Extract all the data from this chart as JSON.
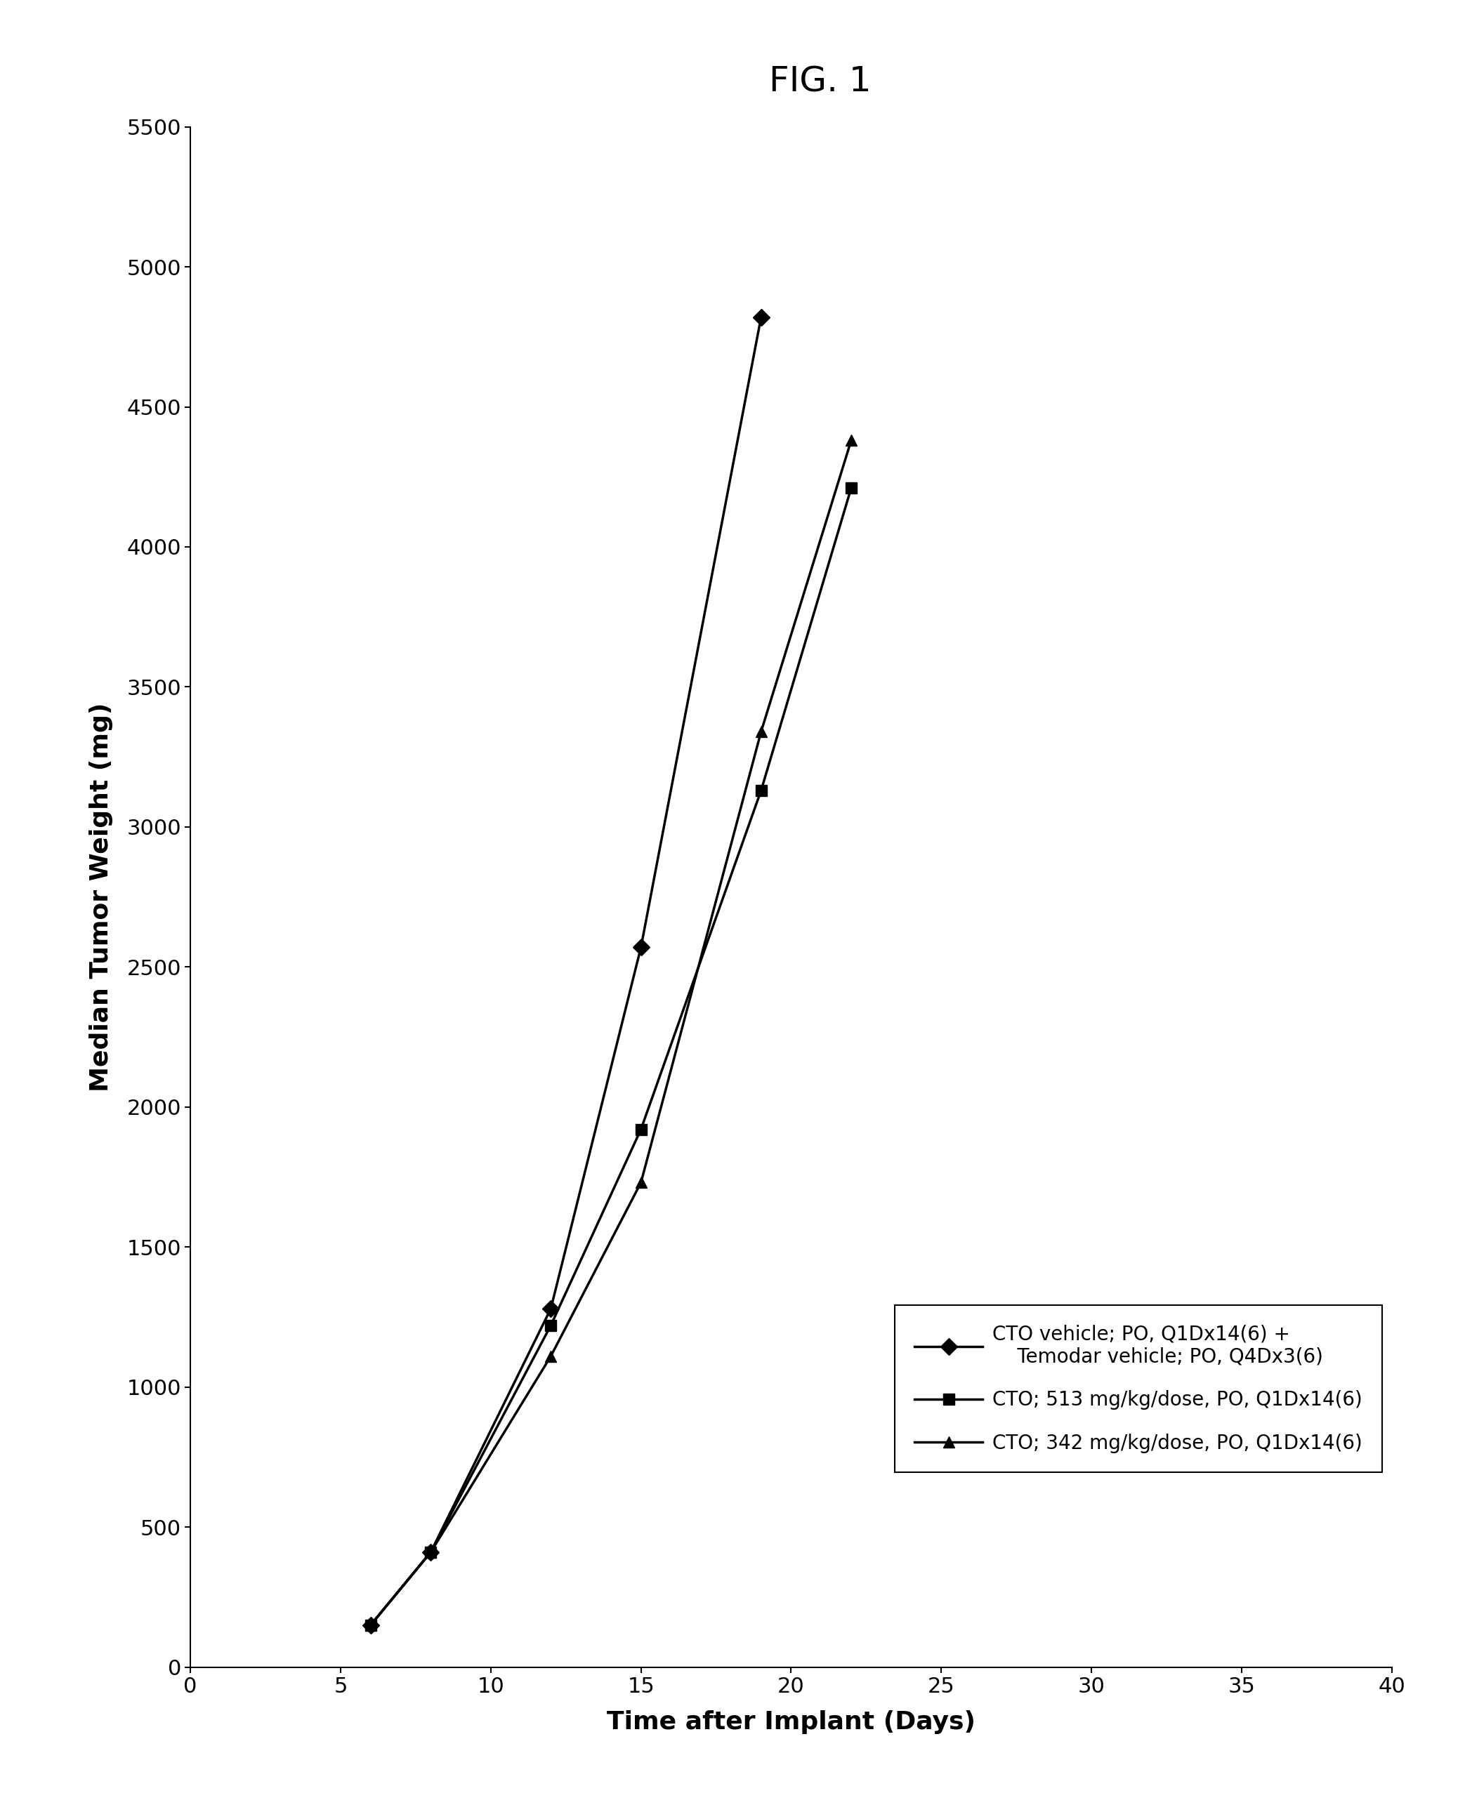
{
  "title": "FIG. 1",
  "xlabel": "Time after Implant (Days)",
  "ylabel": "Median Tumor Weight (mg)",
  "xlim": [
    0,
    40
  ],
  "ylim": [
    0,
    5500
  ],
  "xticks": [
    0,
    5,
    10,
    15,
    20,
    25,
    30,
    35,
    40
  ],
  "yticks": [
    0,
    500,
    1000,
    1500,
    2000,
    2500,
    3000,
    3500,
    4000,
    4500,
    5000,
    5500
  ],
  "series": [
    {
      "label": "CTO vehicle; PO, Q1Dx14(6) +\n    Temodar vehicle; PO, Q4Dx3(6)",
      "x": [
        6,
        8,
        12,
        15,
        19
      ],
      "y": [
        150,
        410,
        1280,
        2570,
        4820
      ],
      "marker": "D",
      "markersize": 12,
      "color": "#000000",
      "linewidth": 2.5
    },
    {
      "label": "CTO; 513 mg/kg/dose, PO, Q1Dx14(6)",
      "x": [
        6,
        8,
        12,
        15,
        19,
        22
      ],
      "y": [
        150,
        410,
        1220,
        1920,
        3130,
        4210
      ],
      "marker": "s",
      "markersize": 12,
      "color": "#000000",
      "linewidth": 2.5
    },
    {
      "label": "CTO; 342 mg/kg/dose, PO, Q1Dx14(6)",
      "x": [
        6,
        8,
        12,
        15,
        19,
        22
      ],
      "y": [
        150,
        410,
        1110,
        1730,
        3340,
        4380
      ],
      "marker": "^",
      "markersize": 12,
      "color": "#000000",
      "linewidth": 2.5
    }
  ],
  "legend_labels": [
    "CTO vehicle; PO, Q1Dx14(6) +\n    Temodar vehicle; PO, Q4Dx3(6)",
    "CTO; 513 mg/kg/dose, PO, Q1Dx14(6)",
    "CTO; 342 mg/kg/dose, PO, Q1Dx14(6)"
  ],
  "background_color": "#ffffff",
  "title_fontsize": 36,
  "axis_label_fontsize": 26,
  "tick_fontsize": 22,
  "legend_fontsize": 20
}
